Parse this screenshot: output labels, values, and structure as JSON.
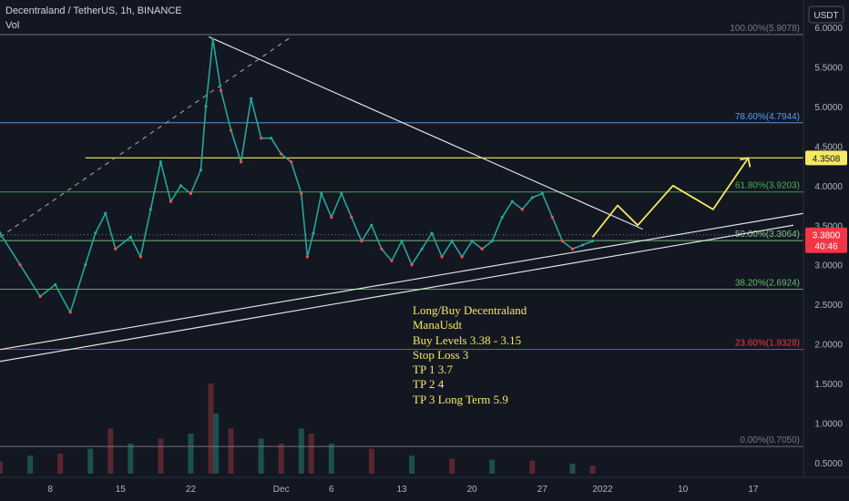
{
  "header": {
    "symbol": "Decentraland / TetherUS, 1h, BINANCE",
    "volume_label": "Vol"
  },
  "currency_badge": "USDT",
  "note_lines": [
    "Long/Buy Decentraland",
    "ManaUsdt",
    "Buy Levels 3.38 - 3.15",
    "Stop Loss 3",
    "TP 1 3.7",
    "TP 2 4",
    "TP 3 Long Term 5.9"
  ],
  "chart_data": {
    "type": "line",
    "title": "",
    "xlabel": "",
    "ylabel": "",
    "ylim": [
      0.35,
      6.1
    ],
    "y_ticks": [
      "6.0000",
      "5.5000",
      "5.0000",
      "4.5000",
      "4.0000",
      "3.5000",
      "3.0000",
      "2.5000",
      "2.0000",
      "1.5000",
      "1.0000",
      "0.5000"
    ],
    "x_ticks": [
      "8",
      "15",
      "22",
      "Dec",
      "6",
      "13",
      "20",
      "27",
      "2022",
      "10",
      "17"
    ],
    "x_tick_days": [
      8,
      15,
      22,
      31,
      36,
      43,
      50,
      57,
      63,
      71,
      78
    ],
    "x_range_days": [
      3,
      83
    ],
    "price_series": {
      "x": [
        3,
        5,
        7,
        8.5,
        10,
        11.5,
        12.5,
        13.5,
        14.5,
        16,
        17,
        18,
        19,
        20,
        21,
        22,
        23,
        23.5,
        24.2,
        25,
        26,
        27,
        28,
        29,
        30,
        31,
        32,
        33,
        33.6,
        34.2,
        35,
        36,
        37,
        38,
        39,
        40,
        41,
        42,
        43,
        44,
        45,
        46,
        47,
        48,
        49,
        50,
        51,
        52,
        53,
        54,
        55,
        56,
        57,
        58,
        59,
        60,
        61,
        62
      ],
      "y": [
        3.4,
        3.0,
        2.6,
        2.75,
        2.4,
        3.0,
        3.4,
        3.65,
        3.2,
        3.35,
        3.1,
        3.7,
        4.3,
        3.8,
        4.0,
        3.9,
        4.2,
        5.0,
        5.85,
        5.2,
        4.7,
        4.3,
        5.1,
        4.6,
        4.6,
        4.4,
        4.3,
        3.9,
        3.1,
        3.4,
        3.9,
        3.6,
        3.9,
        3.6,
        3.3,
        3.5,
        3.2,
        3.05,
        3.3,
        3.0,
        3.2,
        3.4,
        3.1,
        3.3,
        3.1,
        3.3,
        3.2,
        3.3,
        3.6,
        3.8,
        3.7,
        3.85,
        3.9,
        3.6,
        3.3,
        3.2,
        3.25,
        3.3
      ]
    },
    "fibonacci_levels": [
      {
        "label": "100.00%(5.9078)",
        "value": 5.9078,
        "color": "#787b86"
      },
      {
        "label": "78.60%(4.7944)",
        "value": 4.7944,
        "color": "#5b9cf6"
      },
      {
        "label": "61.80%(3.9203)",
        "value": 3.9203,
        "color": "#4caf50"
      },
      {
        "label": "50.00%(3.3064)",
        "value": 3.3064,
        "color": "#81c784"
      },
      {
        "label": "38.20%(2.6924)",
        "value": 2.6924,
        "color": "#66bb6a"
      },
      {
        "label": "23.60%(1.9328)",
        "value": 1.9328,
        "color": "#f23645"
      },
      {
        "label": "0.00%(0.7050)",
        "value": 0.705,
        "color": "#787b86"
      }
    ],
    "resistance_level": {
      "label": "4.3508",
      "value": 4.3508,
      "color": "#f5e960"
    },
    "current_price": {
      "label": "3.3800",
      "value": 3.38,
      "countdown": "40:46",
      "color": "#f23645"
    },
    "projection_path": {
      "x": [
        62,
        64.5,
        66.5,
        70,
        74,
        77.5
      ],
      "y": [
        3.35,
        3.75,
        3.5,
        4.0,
        3.7,
        4.35
      ],
      "color": "#f5e960"
    },
    "trendlines": [
      {
        "name": "descending",
        "x": [
          23.8,
          67
        ],
        "y": [
          5.88,
          3.45
        ]
      },
      {
        "name": "support-upper",
        "x": [
          3,
          83
        ],
        "y": [
          1.93,
          3.65
        ]
      },
      {
        "name": "support-lower",
        "x": [
          3,
          82
        ],
        "y": [
          1.78,
          3.5
        ]
      },
      {
        "name": "dashed-rise",
        "x": [
          3,
          32
        ],
        "y": [
          3.35,
          5.88
        ],
        "dashed": true
      }
    ],
    "volume_series": {
      "x": [
        3,
        6,
        9,
        12,
        14,
        16,
        19,
        22,
        24,
        24.5,
        26,
        29,
        31,
        33,
        34,
        36,
        40,
        44,
        48,
        52,
        56,
        60,
        62
      ],
      "y": [
        0.12,
        0.18,
        0.2,
        0.25,
        0.45,
        0.3,
        0.35,
        0.4,
        0.9,
        0.6,
        0.45,
        0.35,
        0.3,
        0.45,
        0.4,
        0.3,
        0.25,
        0.18,
        0.15,
        0.14,
        0.13,
        0.1,
        0.08
      ]
    },
    "grid": false,
    "legend": "none"
  }
}
